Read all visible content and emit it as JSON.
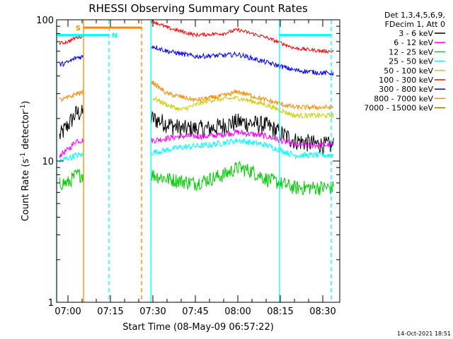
{
  "chart_data": {
    "type": "line",
    "title": "RHESSI Observing Summary Count Rates",
    "xlabel": "Start Time (08-May-09 06:57:22)",
    "ylabel": "Count Rate (s⁻¹ detector⁻¹)",
    "ylabel_parts": [
      "Count Rate (s",
      "-1",
      " detector",
      "-1",
      ")"
    ],
    "yscale": "log",
    "ylim": [
      1,
      100
    ],
    "xlim_minutes": [
      -4.0,
      96.0
    ],
    "x_ticks": [
      {
        "t": 0,
        "label": "07:00"
      },
      {
        "t": 15,
        "label": "07:15"
      },
      {
        "t": 30,
        "label": "07:30"
      },
      {
        "t": 45,
        "label": "07:45"
      },
      {
        "t": 60,
        "label": "08:00"
      },
      {
        "t": 75,
        "label": "08:15"
      },
      {
        "t": 90,
        "label": "08:30"
      }
    ],
    "y_tick_labels": [
      "1",
      "10",
      "100"
    ],
    "legend_header": [
      "Det 1,3,4,5,6,9,",
      "FDecim 1, Att 0"
    ],
    "legend_placement": "right",
    "grid": false,
    "gap_minutes": [
      5.5,
      29.3
    ],
    "series": [
      {
        "name": "3 - 6 keV",
        "color": "#000000",
        "noise": 0.15,
        "points": [
          [
            -3,
            15
          ],
          [
            0,
            18
          ],
          [
            3,
            22
          ],
          [
            30,
            20
          ],
          [
            40,
            17
          ],
          [
            50,
            17
          ],
          [
            60,
            19
          ],
          [
            70,
            18
          ],
          [
            80,
            14
          ],
          [
            90,
            13
          ],
          [
            94,
            13
          ]
        ]
      },
      {
        "name": "6 - 12 keV",
        "color": "#ff00ff",
        "noise": 0.05,
        "points": [
          [
            -3,
            11
          ],
          [
            0,
            12
          ],
          [
            3,
            14
          ],
          [
            30,
            14
          ],
          [
            40,
            15
          ],
          [
            50,
            15
          ],
          [
            60,
            16
          ],
          [
            70,
            15
          ],
          [
            80,
            13
          ],
          [
            90,
            13
          ],
          [
            94,
            13
          ]
        ]
      },
      {
        "name": "12 - 25 keV",
        "color": "#00cc00",
        "noise": 0.12,
        "points": [
          [
            -3,
            7
          ],
          [
            0,
            7
          ],
          [
            3,
            8
          ],
          [
            30,
            8
          ],
          [
            35,
            7.5
          ],
          [
            45,
            7
          ],
          [
            55,
            8
          ],
          [
            60,
            9
          ],
          [
            65,
            8.5
          ],
          [
            70,
            7.5
          ],
          [
            80,
            6.5
          ],
          [
            90,
            6.5
          ],
          [
            94,
            6.5
          ]
        ]
      },
      {
        "name": "25 - 50 keV",
        "color": "#00ffff",
        "noise": 0.05,
        "points": [
          [
            -3,
            10
          ],
          [
            0,
            10.5
          ],
          [
            3,
            11
          ],
          [
            30,
            11.5
          ],
          [
            40,
            12.5
          ],
          [
            50,
            13
          ],
          [
            60,
            14
          ],
          [
            70,
            13
          ],
          [
            80,
            11
          ],
          [
            90,
            11
          ],
          [
            94,
            11
          ]
        ]
      },
      {
        "name": "50 - 100 keV",
        "color": "#cccc00",
        "noise": 0.04,
        "points": [
          [
            30,
            28
          ],
          [
            35,
            25
          ],
          [
            40,
            23
          ],
          [
            50,
            27
          ],
          [
            60,
            28
          ],
          [
            70,
            25
          ],
          [
            80,
            21
          ],
          [
            90,
            21
          ],
          [
            94,
            21
          ]
        ]
      },
      {
        "name": "100 - 300 keV",
        "color": "#ff0000",
        "noise": 0.03,
        "points": [
          [
            -3,
            68
          ],
          [
            0,
            70
          ],
          [
            3,
            75
          ],
          [
            30,
            98
          ],
          [
            35,
            88
          ],
          [
            45,
            78
          ],
          [
            55,
            80
          ],
          [
            60,
            85
          ],
          [
            70,
            75
          ],
          [
            80,
            63
          ],
          [
            90,
            60
          ],
          [
            94,
            60
          ]
        ]
      },
      {
        "name": "300 - 800 keV",
        "color": "#0000ff",
        "noise": 0.04,
        "points": [
          [
            -3,
            48
          ],
          [
            0,
            50
          ],
          [
            3,
            54
          ],
          [
            30,
            65
          ],
          [
            35,
            60
          ],
          [
            45,
            55
          ],
          [
            55,
            56
          ],
          [
            60,
            57
          ],
          [
            70,
            50
          ],
          [
            80,
            44
          ],
          [
            90,
            42
          ],
          [
            94,
            42
          ]
        ]
      },
      {
        "name": "800 - 7000 keV",
        "color": "#ff8800",
        "noise": 0.04,
        "points": [
          [
            -3,
            27
          ],
          [
            0,
            28
          ],
          [
            3,
            30
          ],
          [
            30,
            36
          ],
          [
            35,
            30
          ],
          [
            45,
            27
          ],
          [
            55,
            29
          ],
          [
            60,
            31
          ],
          [
            70,
            27
          ],
          [
            80,
            24
          ],
          [
            90,
            24
          ],
          [
            94,
            24
          ]
        ]
      },
      {
        "name": "7000 - 15000 keV",
        "color": "#808000",
        "noise": 0,
        "points": []
      }
    ],
    "flag_bars": [
      {
        "label": "S",
        "color": "#ff8800",
        "level": 88,
        "t_start": 5.5,
        "t_end": 26.0
      },
      {
        "label": "N",
        "color": "#00ffff",
        "level": 78,
        "t_start": -4.0,
        "t_end": 14.5
      },
      {
        "label": "",
        "color": "#00ffff",
        "level": 78,
        "t_start": 74.7,
        "t_end": 93.0
      }
    ],
    "vertical_markers": [
      {
        "t": 5.5,
        "color": "#ff8800",
        "style": "solid"
      },
      {
        "t": 26.0,
        "color": "#ff8800",
        "style": "dashed"
      },
      {
        "t": 14.5,
        "color": "#00ffff",
        "style": "dashed"
      },
      {
        "t": -4.0,
        "color": "#00ffff",
        "style": "solid"
      },
      {
        "t": 29.3,
        "color": "#00ffff",
        "style": "solid"
      },
      {
        "t": 74.7,
        "color": "#00ffff",
        "style": "solid"
      },
      {
        "t": 93.0,
        "color": "#00ffff",
        "style": "dashed"
      }
    ],
    "footer": "14-Oct-2021 18:51"
  }
}
